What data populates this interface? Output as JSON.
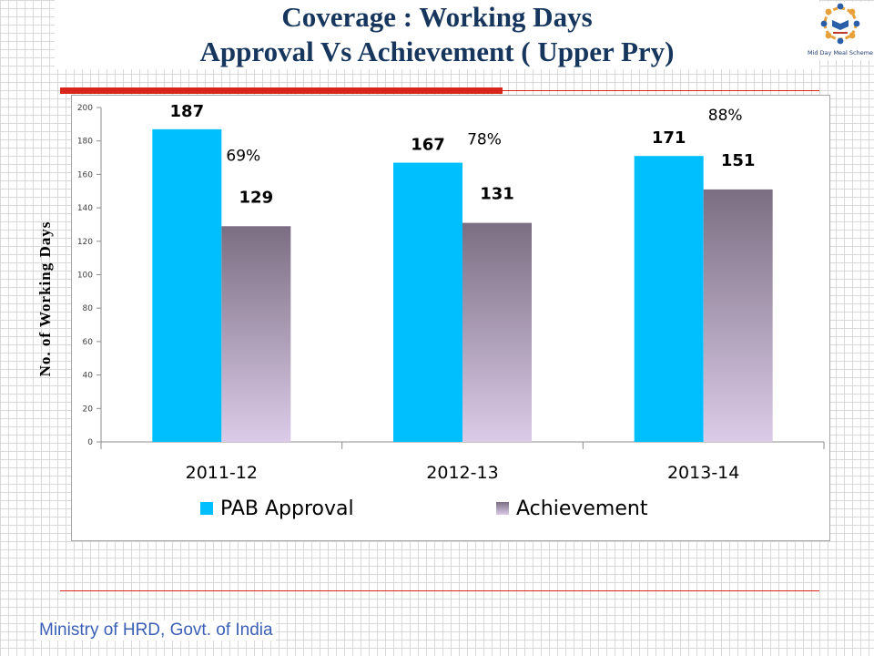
{
  "slide": {
    "title_line1": "Coverage : Working Days",
    "title_line2": "Approval Vs Achievement  ( Upper Pry)",
    "footer": "Ministry of HRD, Govt. of India",
    "logo_caption": "Mid Day Meal Scheme"
  },
  "colors": {
    "title": "#17365d",
    "accent": "#d9261c",
    "pab": "#00bfff",
    "achievement_top": "#7b6e82",
    "achievement_bottom": "#dccbe8",
    "footer": "#3b5fb5"
  },
  "chart_data": {
    "type": "bar",
    "title": "",
    "xlabel": "",
    "ylabel": "No. of Working Days",
    "categories": [
      "2011-12",
      "2012-13",
      "2013-14"
    ],
    "series": [
      {
        "name": "PAB Approval",
        "values": [
          187,
          167,
          171
        ],
        "labels": [
          "187",
          "167",
          "171"
        ]
      },
      {
        "name": "Achievement",
        "values": [
          129,
          131,
          151
        ],
        "labels": [
          "129",
          "131",
          "151"
        ]
      }
    ],
    "percent_labels": [
      "69%",
      "78%",
      "88%"
    ],
    "ylim": [
      0,
      200
    ],
    "yticks": [
      0,
      20,
      40,
      60,
      80,
      100,
      120,
      140,
      160,
      180,
      200
    ],
    "legend_position": "bottom",
    "grid": false
  }
}
